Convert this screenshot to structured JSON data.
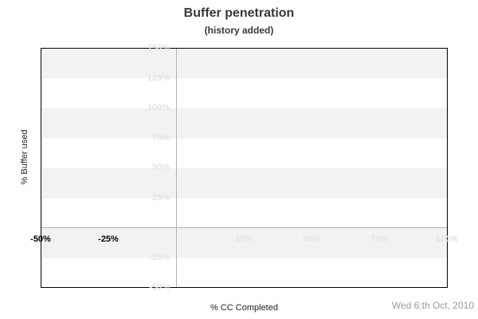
{
  "header": {
    "title": "Buffer penetration",
    "subtitle": "(history added)"
  },
  "footer": {
    "date": "Wed 6:th Oct, 2010"
  },
  "colors": {
    "band": "#f2f2f2",
    "plot_border": "#000000",
    "zero_line": "#b3b3b3",
    "faint_tick": "#e4e4e4",
    "strong_tick": "#000000",
    "title_text": "#383838",
    "axis_title_text": "#222222",
    "date_text": "#999999"
  },
  "chart_data": {
    "type": "line",
    "title": "Buffer penetration",
    "subtitle": "(history added)",
    "xlabel": "% CC Completed",
    "ylabel": "% Buffer used",
    "xlim": [
      -50,
      100
    ],
    "ylim": [
      -50,
      150
    ],
    "x_ticks": [
      {
        "value": -50,
        "label": "-50%",
        "emphasis": "strong"
      },
      {
        "value": -25,
        "label": "-25%",
        "emphasis": "strong"
      },
      {
        "value": 25,
        "label": "25%",
        "emphasis": "faint"
      },
      {
        "value": 50,
        "label": "50%",
        "emphasis": "faint"
      },
      {
        "value": 75,
        "label": "75%",
        "emphasis": "faint"
      },
      {
        "value": 100,
        "label": "100%",
        "emphasis": "faint"
      }
    ],
    "y_ticks": [
      {
        "value": 150,
        "label": "150%",
        "emphasis": "faint"
      },
      {
        "value": 125,
        "label": "125%",
        "emphasis": "faint"
      },
      {
        "value": 100,
        "label": "100%",
        "emphasis": "faint"
      },
      {
        "value": 75,
        "label": "75%",
        "emphasis": "faint"
      },
      {
        "value": 50,
        "label": "50%",
        "emphasis": "faint"
      },
      {
        "value": 25,
        "label": "25%",
        "emphasis": "faint"
      },
      {
        "value": -25,
        "label": "-25%",
        "emphasis": "faint"
      },
      {
        "value": -50,
        "label": "-50%",
        "emphasis": "faint"
      }
    ],
    "zero_lines": {
      "x": 0,
      "y": 0
    },
    "striped_bands_y": [
      [
        125,
        150
      ],
      [
        75,
        100
      ],
      [
        25,
        50
      ],
      [
        -25,
        0
      ]
    ],
    "series": [],
    "grid": "striped-horizontal-bands",
    "legend": "none"
  }
}
